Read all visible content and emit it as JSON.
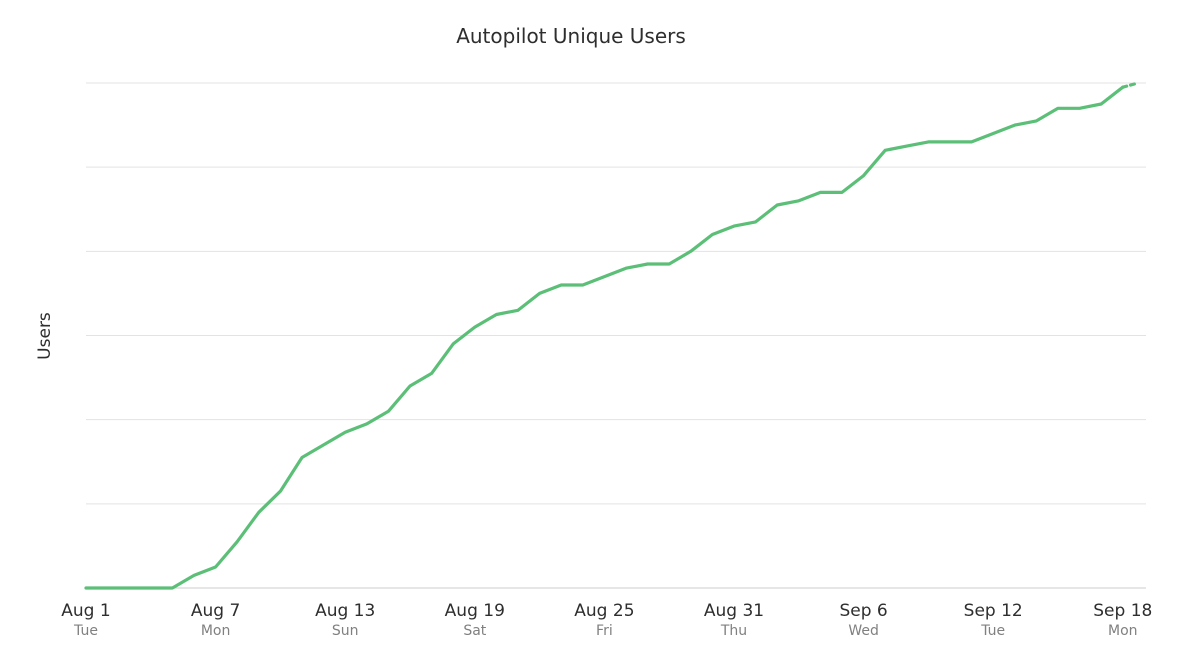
{
  "chart_data": {
    "type": "line",
    "title": "Autopilot Unique Users",
    "ylabel": "Users",
    "xlabel": "",
    "ylim": [
      0,
      120
    ],
    "y_gridlines": [
      0,
      20,
      40,
      60,
      80,
      100,
      120
    ],
    "y_tick_labels_visible": false,
    "grid": true,
    "legend": "none",
    "line_color": "#5cbf78",
    "x_ticks": [
      {
        "date": "Aug 1",
        "day": "Tue",
        "index": 0
      },
      {
        "date": "Aug 7",
        "day": "Mon",
        "index": 6
      },
      {
        "date": "Aug 13",
        "day": "Sun",
        "index": 12
      },
      {
        "date": "Aug 19",
        "day": "Sat",
        "index": 18
      },
      {
        "date": "Aug 25",
        "day": "Fri",
        "index": 24
      },
      {
        "date": "Aug 31",
        "day": "Thu",
        "index": 30
      },
      {
        "date": "Sep 6",
        "day": "Wed",
        "index": 36
      },
      {
        "date": "Sep 12",
        "day": "Tue",
        "index": 42
      },
      {
        "date": "Sep 18",
        "day": "Mon",
        "index": 48
      }
    ],
    "x_domain_days": [
      0,
      49
    ],
    "series": [
      {
        "values": [
          0,
          0,
          0,
          0,
          0,
          3,
          5,
          11,
          18,
          23,
          31,
          34,
          37,
          39,
          42,
          48,
          51,
          58,
          62,
          65,
          66,
          70,
          72,
          72,
          74,
          76,
          77,
          77,
          80,
          84,
          86,
          87,
          91,
          92,
          94,
          94,
          98,
          104,
          105,
          106,
          106,
          106,
          108,
          110,
          111,
          114,
          114,
          115,
          119
        ],
        "incomplete_tail": [
          119,
          120
        ]
      }
    ]
  }
}
